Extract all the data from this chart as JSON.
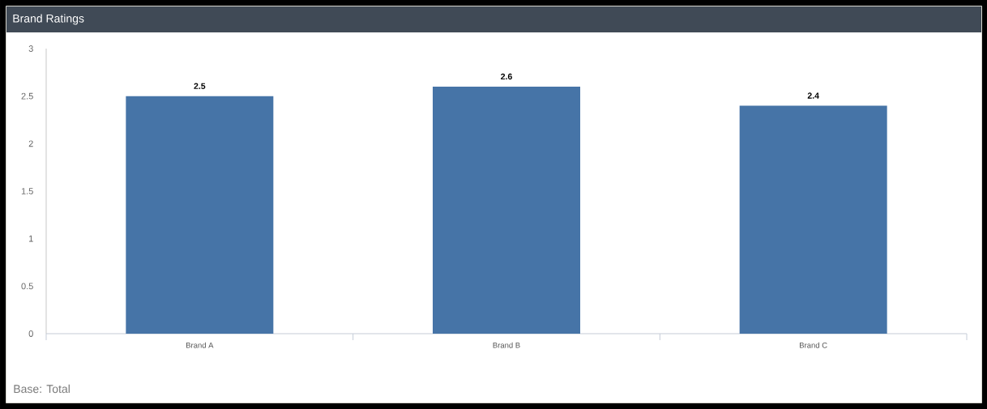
{
  "chart_data": {
    "type": "bar",
    "title": "Brand Ratings",
    "categories": [
      "Brand A",
      "Brand B",
      "Brand C"
    ],
    "values": [
      2.5,
      2.6,
      2.4
    ],
    "color": "#4674a7",
    "ylim": [
      0,
      3
    ],
    "yticks": [
      0,
      0.5,
      1,
      1.5,
      2,
      2.5,
      3
    ],
    "data_labels": true,
    "annotations": [
      "Base: Total"
    ]
  }
}
